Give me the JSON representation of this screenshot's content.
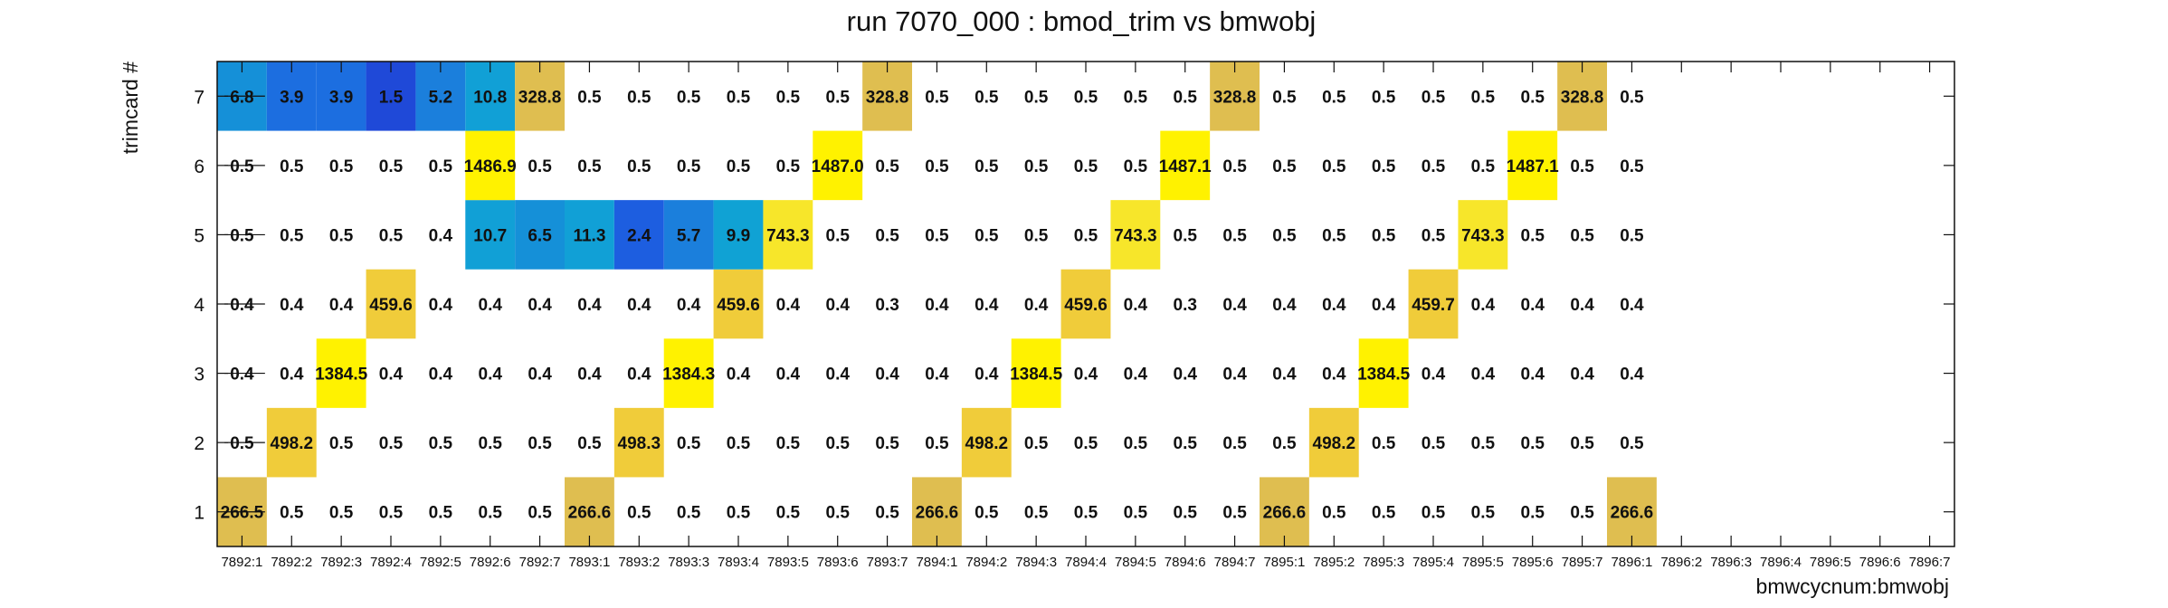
{
  "chart_data": {
    "type": "heatmap",
    "title": "run 7070_000 : bmod_trim vs bmwobj",
    "xlabel": "bmwcycnum:bmwobj",
    "ylabel": "trimcard #",
    "x_categories": [
      "7892:1",
      "7892:2",
      "7892:3",
      "7892:4",
      "7892:5",
      "7892:6",
      "7892:7",
      "7893:1",
      "7893:2",
      "7893:3",
      "7893:4",
      "7893:5",
      "7893:6",
      "7893:7",
      "7894:1",
      "7894:2",
      "7894:3",
      "7894:4",
      "7894:5",
      "7894:6",
      "7894:7",
      "7895:1",
      "7895:2",
      "7895:3",
      "7895:4",
      "7895:5",
      "7895:6",
      "7895:7",
      "7896:1",
      "7896:2",
      "7896:3",
      "7896:4",
      "7896:5",
      "7896:6",
      "7896:7"
    ],
    "y_categories": [
      "1",
      "2",
      "3",
      "4",
      "5",
      "6",
      "7"
    ],
    "grid": false,
    "colormap": [
      "#1f3fd8",
      "#1a6fe0",
      "#1e9ad8",
      "#d8b84e",
      "#f5e020",
      "#fff200"
    ],
    "values": [
      [
        "266.5",
        "0.5",
        "0.5",
        "0.5",
        "0.5",
        "0.5",
        "0.5",
        "266.6",
        "0.5",
        "0.5",
        "0.5",
        "0.5",
        "0.5",
        "0.5",
        "266.6",
        "0.5",
        "0.5",
        "0.5",
        "0.5",
        "0.5",
        "0.5",
        "266.6",
        "0.5",
        "0.5",
        "0.5",
        "0.5",
        "0.5",
        "0.5",
        "266.6",
        null,
        null,
        null,
        null,
        null,
        null
      ],
      [
        "0.5",
        "498.2",
        "0.5",
        "0.5",
        "0.5",
        "0.5",
        "0.5",
        "0.5",
        "498.3",
        "0.5",
        "0.5",
        "0.5",
        "0.5",
        "0.5",
        "0.5",
        "498.2",
        "0.5",
        "0.5",
        "0.5",
        "0.5",
        "0.5",
        "0.5",
        "498.2",
        "0.5",
        "0.5",
        "0.5",
        "0.5",
        "0.5",
        "0.5",
        null,
        null,
        null,
        null,
        null,
        null
      ],
      [
        "0.4",
        "0.4",
        "1384.5",
        "0.4",
        "0.4",
        "0.4",
        "0.4",
        "0.4",
        "0.4",
        "1384.3",
        "0.4",
        "0.4",
        "0.4",
        "0.4",
        "0.4",
        "0.4",
        "1384.5",
        "0.4",
        "0.4",
        "0.4",
        "0.4",
        "0.4",
        "0.4",
        "1384.5",
        "0.4",
        "0.4",
        "0.4",
        "0.4",
        "0.4",
        null,
        null,
        null,
        null,
        null,
        null
      ],
      [
        "0.4",
        "0.4",
        "0.4",
        "459.6",
        "0.4",
        "0.4",
        "0.4",
        "0.4",
        "0.4",
        "0.4",
        "459.6",
        "0.4",
        "0.4",
        "0.3",
        "0.4",
        "0.4",
        "0.4",
        "459.6",
        "0.4",
        "0.3",
        "0.4",
        "0.4",
        "0.4",
        "0.4",
        "459.7",
        "0.4",
        "0.4",
        "0.4",
        "0.4",
        null,
        null,
        null,
        null,
        null,
        null
      ],
      [
        "0.5",
        "0.5",
        "0.5",
        "0.5",
        "0.4",
        "10.7",
        "6.5",
        "11.3",
        "2.4",
        "5.7",
        "9.9",
        "743.3",
        "0.5",
        "0.5",
        "0.5",
        "0.5",
        "0.5",
        "0.5",
        "743.3",
        "0.5",
        "0.5",
        "0.5",
        "0.5",
        "0.5",
        "0.5",
        "743.3",
        "0.5",
        "0.5",
        "0.5",
        null,
        null,
        null,
        null,
        null,
        null
      ],
      [
        "0.5",
        "0.5",
        "0.5",
        "0.5",
        "0.5",
        "1486.9",
        "0.5",
        "0.5",
        "0.5",
        "0.5",
        "0.5",
        "0.5",
        "1487.0",
        "0.5",
        "0.5",
        "0.5",
        "0.5",
        "0.5",
        "0.5",
        "1487.1",
        "0.5",
        "0.5",
        "0.5",
        "0.5",
        "0.5",
        "0.5",
        "1487.1",
        "0.5",
        "0.5",
        null,
        null,
        null,
        null,
        null,
        null
      ],
      [
        "6.8",
        "3.9",
        "3.9",
        "1.5",
        "5.2",
        "10.8",
        "328.8",
        "0.5",
        "0.5",
        "0.5",
        "0.5",
        "0.5",
        "0.5",
        "328.8",
        "0.5",
        "0.5",
        "0.5",
        "0.5",
        "0.5",
        "0.5",
        "328.8",
        "0.5",
        "0.5",
        "0.5",
        "0.5",
        "0.5",
        "0.5",
        "328.8",
        "0.5",
        null,
        null,
        null,
        null,
        null,
        null
      ]
    ]
  }
}
